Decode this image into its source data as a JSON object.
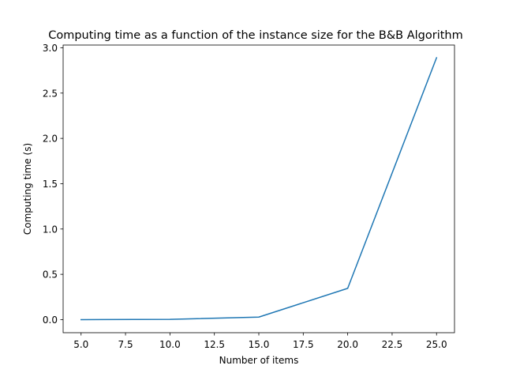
{
  "chart_data": {
    "type": "line",
    "title": "Computing time as a function of the instance size for the B&B Algorithm",
    "xlabel": "Number of items",
    "ylabel": "Computing time (s)",
    "xlim": [
      3.99,
      26.01
    ],
    "ylim": [
      -0.1442,
      3.0302
    ],
    "x_ticks": [
      5.0,
      7.5,
      10.0,
      12.5,
      15.0,
      17.5,
      20.0,
      22.5,
      25.0
    ],
    "x_tick_labels": [
      "5.0",
      "7.5",
      "10.0",
      "12.5",
      "15.0",
      "17.5",
      "20.0",
      "22.5",
      "25.0"
    ],
    "y_ticks": [
      0.0,
      0.5,
      1.0,
      1.5,
      2.0,
      2.5,
      3.0
    ],
    "y_tick_labels": [
      "0.0",
      "0.5",
      "1.0",
      "1.5",
      "2.0",
      "2.5",
      "3.0"
    ],
    "grid": false,
    "series": [
      {
        "color": "#1f77b4",
        "x": [
          5,
          10,
          15,
          20,
          25
        ],
        "y": [
          0.0,
          0.003,
          0.028,
          0.345,
          2.89
        ]
      }
    ]
  }
}
